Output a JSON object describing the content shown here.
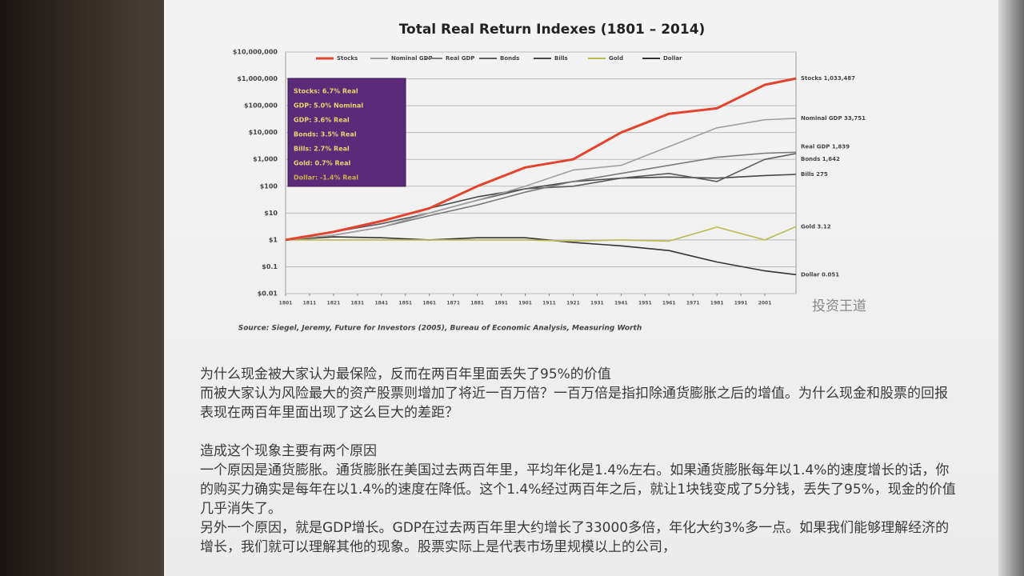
{
  "chart_data": {
    "type": "line",
    "title": "Total Real Return Indexes (1801 – 2014)",
    "x": [
      1801,
      1821,
      1841,
      1861,
      1881,
      1901,
      1921,
      1941,
      1961,
      1981,
      2001,
      2014
    ],
    "xlim": [
      1801,
      2014
    ],
    "xticks": [
      1801,
      1811,
      1821,
      1831,
      1841,
      1851,
      1861,
      1871,
      1881,
      1891,
      1901,
      1911,
      1921,
      1931,
      1941,
      1951,
      1961,
      1971,
      1981,
      1991,
      2001
    ],
    "ylim": [
      0.01,
      10000000
    ],
    "log": true,
    "grid": true,
    "yticks": [
      {
        "value": 0.01,
        "label": "$0.01"
      },
      {
        "value": 0.1,
        "label": "$0.1"
      },
      {
        "value": 1,
        "label": "$1"
      },
      {
        "value": 10,
        "label": "$10"
      },
      {
        "value": 100,
        "label": "$100"
      },
      {
        "value": 1000,
        "label": "$1,000"
      },
      {
        "value": 10000,
        "label": "$10,000"
      },
      {
        "value": 100000,
        "label": "$100,000"
      },
      {
        "value": 1000000,
        "label": "$1,000,000"
      },
      {
        "value": 10000000,
        "label": "$10,000,000"
      }
    ],
    "series": [
      {
        "name": "Stocks",
        "color": "#e2442f",
        "values": [
          1,
          2,
          5,
          15,
          100,
          500,
          1000,
          10000,
          50000,
          80000,
          600000,
          1033487
        ]
      },
      {
        "name": "Nominal GDP",
        "color": "#a0a0a0",
        "values": [
          1,
          1.5,
          3,
          10,
          30,
          100,
          400,
          600,
          3000,
          15000,
          30000,
          33751
        ]
      },
      {
        "name": "Real GDP",
        "color": "#7a7a7a",
        "values": [
          1,
          1.5,
          3,
          8,
          20,
          60,
          150,
          300,
          600,
          1200,
          1700,
          1839
        ]
      },
      {
        "name": "Bonds",
        "color": "#5c5c5c",
        "values": [
          1,
          2,
          4,
          10,
          30,
          80,
          100,
          200,
          300,
          150,
          1000,
          1642
        ]
      },
      {
        "name": "Bills",
        "color": "#474747",
        "values": [
          1,
          2,
          5,
          15,
          40,
          80,
          150,
          200,
          220,
          200,
          250,
          275
        ]
      },
      {
        "name": "Gold",
        "color": "#b9bb4c",
        "values": [
          1,
          1,
          1,
          1,
          1,
          1,
          0.9,
          1,
          0.9,
          3,
          1,
          3.12
        ]
      },
      {
        "name": "Dollar",
        "color": "#333333",
        "values": [
          1,
          1.3,
          1.2,
          1,
          1.2,
          1.2,
          0.8,
          0.6,
          0.4,
          0.15,
          0.07,
          0.051
        ]
      }
    ],
    "annotations": [
      "Stocks 1,033,487",
      "Nominal GDP 33,751",
      "Real GDP 1,839",
      "Bonds 1,642",
      "Bills 275",
      "Gold 3.12",
      "Dollar 0.051"
    ],
    "info_box": [
      "Stocks: 6.7% Real",
      "GDP: 5.0% Nominal",
      "GDP: 3.6% Real",
      "Bonds: 3.5% Real",
      "Bills: 2.7% Real",
      "Gold: 0.7% Real",
      "Dollar: -1.4% Real"
    ],
    "source": "Source: Siegel, Jeremy, Future for Investors (2005), Bureau of Economic Analysis, Measuring Worth"
  },
  "watermark": "投资王道",
  "paragraphs": [
    "为什么现金被大家认为最保险，反而在两百年里面丢失了95%的价值",
    "而被大家认为风险最大的资产股票则增加了将近一百万倍？一百万倍是指扣除通货膨胀之后的增值。为什么现金和股票的回报表现在两百年里面出现了这么巨大的差距？",
    "造成这个现象主要有两个原因",
    "一个原因是通货膨胀。通货膨胀在美国过去两百年里，平均年化是1.4%左右。如果通货膨胀每年以1.4%的速度增长的话，你的购买力确实是每年在以1.4%的速度在降低。这个1.4%经过两百年之后，就让1块钱变成了5分钱，丢失了95%，现金的价值几乎消失了。",
    "另外一个原因，就是GDP增长。GDP在过去两百年里大约增长了33000多倍，年化大约3%多一点。如果我们能够理解经济的增长，我们就可以理解其他的现象。股票实际上是代表市场里规模以上的公司，"
  ]
}
